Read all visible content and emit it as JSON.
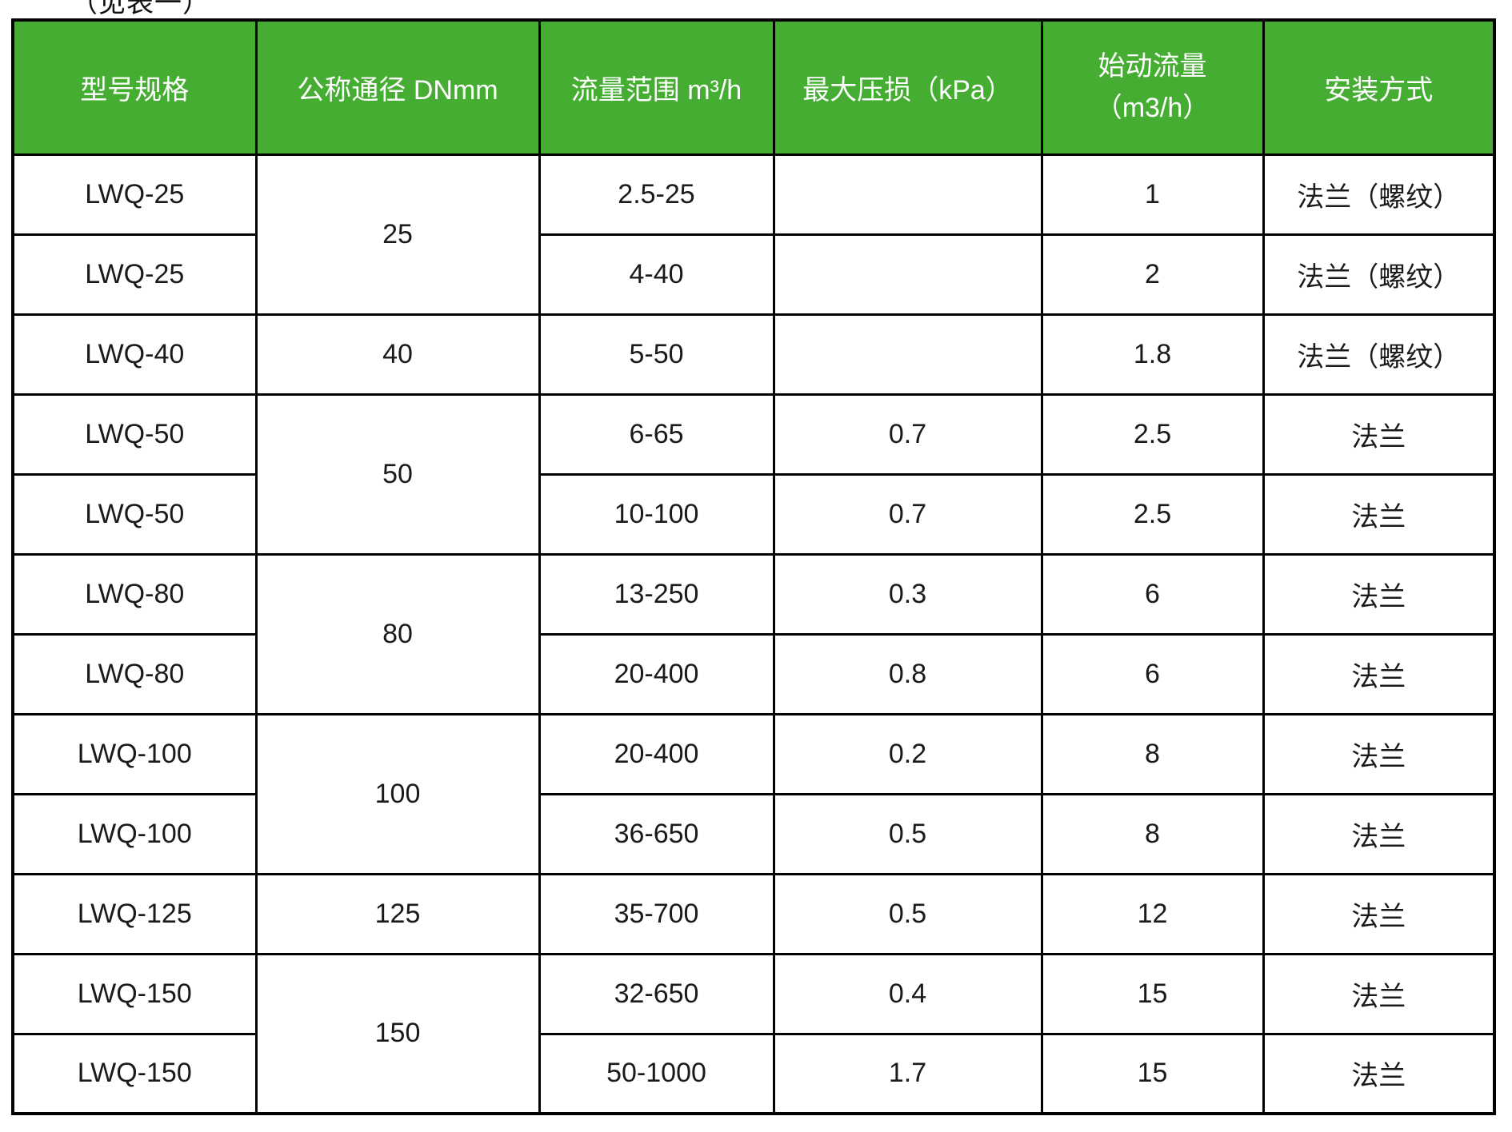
{
  "page": {
    "top_note": "（见表一）"
  },
  "theme": {
    "header_bg": "#46ad33",
    "header_text": "#ffffff",
    "border_color": "#000000",
    "body_text": "#1a1a1a"
  },
  "table": {
    "headers": {
      "model": "型号规格",
      "dn": "公称通径 DNmm",
      "flow_range": "流量范围 m³/h",
      "max_loss": "最大压损（kPa）",
      "start_flow_line1": "始动流量",
      "start_flow_line2": "（m3/h）",
      "install": "安装方式"
    },
    "rows": [
      {
        "model": "LWQ-25",
        "dn": "25",
        "flow": "2.5-25",
        "loss": "",
        "start": "1",
        "install": "法兰（螺纹）"
      },
      {
        "model": "LWQ-25",
        "dn": "",
        "flow": "4-40",
        "loss": "",
        "start": "2",
        "install": "法兰（螺纹）"
      },
      {
        "model": "LWQ-40",
        "dn": "40",
        "flow": "5-50",
        "loss": "",
        "start": "1.8",
        "install": "法兰（螺纹）"
      },
      {
        "model": "LWQ-50",
        "dn": "50",
        "flow": "6-65",
        "loss": "0.7",
        "start": "2.5",
        "install": "法兰"
      },
      {
        "model": "LWQ-50",
        "dn": "",
        "flow": "10-100",
        "loss": "0.7",
        "start": "2.5",
        "install": "法兰"
      },
      {
        "model": "LWQ-80",
        "dn": "80",
        "flow": "13-250",
        "loss": "0.3",
        "start": "6",
        "install": "法兰"
      },
      {
        "model": "LWQ-80",
        "dn": "",
        "flow": "20-400",
        "loss": "0.8",
        "start": "6",
        "install": "法兰"
      },
      {
        "model": "LWQ-100",
        "dn": "100",
        "flow": "20-400",
        "loss": "0.2",
        "start": "8",
        "install": "法兰"
      },
      {
        "model": "LWQ-100",
        "dn": "",
        "flow": "36-650",
        "loss": "0.5",
        "start": "8",
        "install": "法兰"
      },
      {
        "model": "LWQ-125",
        "dn": "125",
        "flow": "35-700",
        "loss": "0.5",
        "start": "12",
        "install": "法兰"
      },
      {
        "model": "LWQ-150",
        "dn": "150",
        "flow": "32-650",
        "loss": "0.4",
        "start": "15",
        "install": "法兰"
      },
      {
        "model": "LWQ-150",
        "dn": "",
        "flow": "50-1000",
        "loss": "1.7",
        "start": "15",
        "install": "法兰"
      }
    ]
  }
}
